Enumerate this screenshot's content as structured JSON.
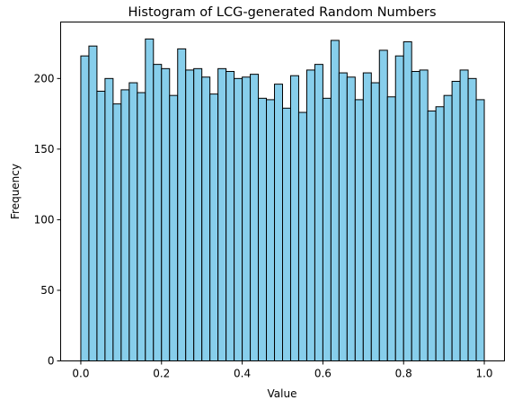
{
  "chart_data": {
    "type": "bar",
    "title": "Histogram of LCG-generated Random Numbers",
    "xlabel": "Value",
    "ylabel": "Frequency",
    "xlim": [
      -0.05,
      1.05
    ],
    "ylim": [
      0,
      240
    ],
    "x_ticks": [
      0.0,
      0.2,
      0.4,
      0.6,
      0.8,
      1.0
    ],
    "x_tick_labels": [
      "0.0",
      "0.2",
      "0.4",
      "0.6",
      "0.8",
      "1.0"
    ],
    "y_ticks": [
      0,
      50,
      100,
      150,
      200
    ],
    "y_tick_labels": [
      "0",
      "50",
      "100",
      "150",
      "200"
    ],
    "bin_start": 0.0,
    "bin_end": 1.0,
    "bin_count": 50,
    "values": [
      216,
      223,
      191,
      200,
      182,
      192,
      197,
      190,
      228,
      210,
      207,
      188,
      221,
      206,
      207,
      201,
      189,
      207,
      205,
      200,
      201,
      203,
      186,
      185,
      196,
      179,
      202,
      176,
      206,
      210,
      186,
      227,
      204,
      201,
      185,
      204,
      197,
      220,
      187,
      216,
      226,
      205,
      206,
      177,
      180,
      188,
      198,
      206,
      200,
      185
    ],
    "bar_color": "#87ceeb",
    "edge_color": "#000000",
    "grid": false,
    "legend": "none"
  }
}
